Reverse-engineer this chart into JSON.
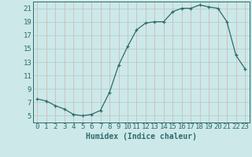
{
  "x": [
    0,
    1,
    2,
    3,
    4,
    5,
    6,
    7,
    8,
    9,
    10,
    11,
    12,
    13,
    14,
    15,
    16,
    17,
    18,
    19,
    20,
    21,
    22,
    23
  ],
  "y": [
    7.5,
    7.2,
    6.5,
    6.0,
    5.2,
    5.0,
    5.2,
    5.8,
    8.5,
    12.5,
    15.3,
    17.8,
    18.8,
    19.0,
    19.0,
    20.5,
    21.0,
    21.0,
    21.5,
    21.2,
    21.0,
    19.0,
    14.0,
    12.0
  ],
  "xlabel": "Humidex (Indice chaleur)",
  "xlim": [
    -0.5,
    23.5
  ],
  "ylim": [
    4,
    22
  ],
  "yticks": [
    5,
    7,
    9,
    11,
    13,
    15,
    17,
    19,
    21
  ],
  "xticks": [
    0,
    1,
    2,
    3,
    4,
    5,
    6,
    7,
    8,
    9,
    10,
    11,
    12,
    13,
    14,
    15,
    16,
    17,
    18,
    19,
    20,
    21,
    22,
    23
  ],
  "line_color": "#2e6b6b",
  "marker": "+",
  "bg_color": "#cce8e8",
  "grid_color_teal": "#aacccc",
  "grid_color_pink": "#d4b0b0",
  "text_color": "#2e6b6b",
  "xlabel_fontsize": 7,
  "tick_fontsize": 6.5
}
